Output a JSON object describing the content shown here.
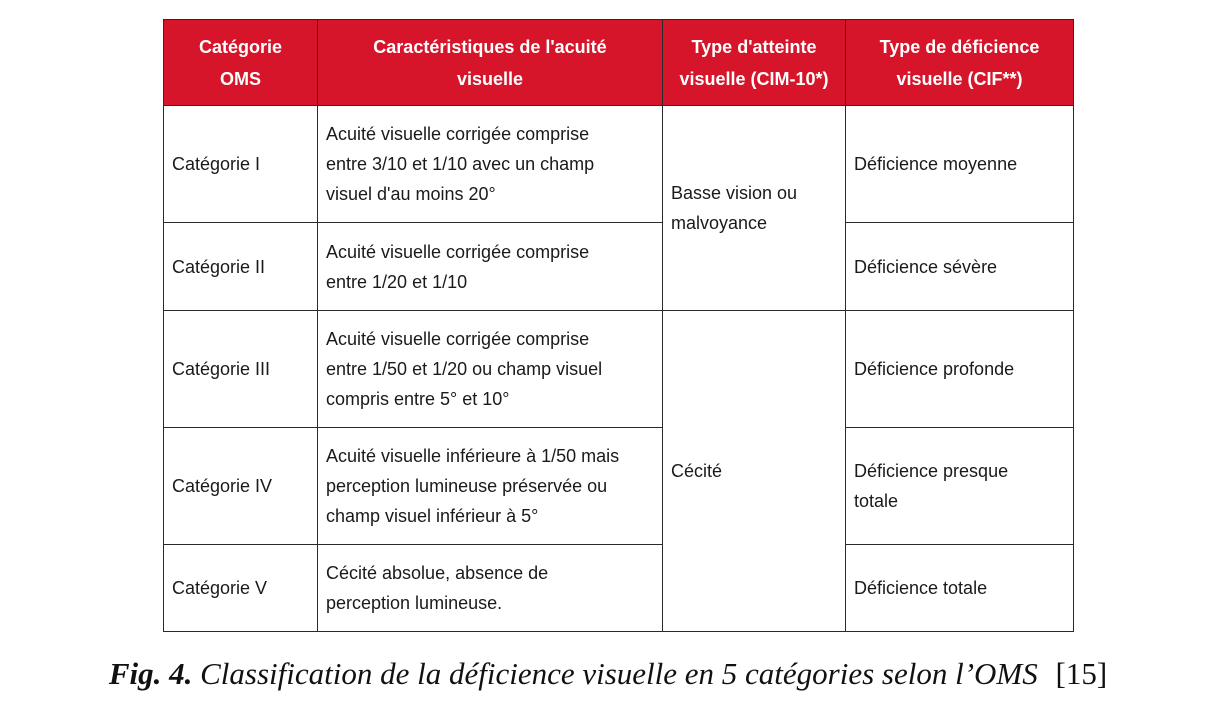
{
  "table": {
    "headers": [
      "Catégorie\nOMS",
      "Caractéristiques de l'acuité\nvisuelle",
      "Type d'atteinte\nvisuelle (CIM-10*)",
      "Type de déficience\nvisuelle (CIF**)"
    ],
    "rows": [
      {
        "category": "Catégorie I",
        "characteristics": "Acuité visuelle corrigée comprise\nentre 3/10 et 1/10 avec un champ\nvisuel d'au moins 20°",
        "deficiency": "Déficience moyenne"
      },
      {
        "category": "Catégorie II",
        "characteristics": "Acuité visuelle corrigée comprise\nentre 1/20 et 1/10",
        "deficiency": "Déficience sévère"
      },
      {
        "category": "Catégorie III",
        "characteristics": "Acuité visuelle corrigée comprise\nentre 1/50 et 1/20 ou champ visuel\ncompris entre 5° et 10°",
        "deficiency": "Déficience profonde"
      },
      {
        "category": "Catégorie IV",
        "characteristics": "Acuité visuelle inférieure à 1/50 mais\nperception lumineuse préservée ou\nchamp visuel inférieur à 5°",
        "deficiency": "Déficience presque\ntotale"
      },
      {
        "category": "Catégorie V",
        "characteristics": "Cécité absolue, absence de\nperception lumineuse.",
        "deficiency": "Déficience totale"
      }
    ],
    "impairment_groups": [
      {
        "label": "Basse vision ou\nmalvoyance",
        "rows": 2
      },
      {
        "label": "Cécité",
        "rows": 3
      }
    ],
    "colors": {
      "header_bg": "#d7152a",
      "header_text": "#ffffff",
      "border": "#2b2b2b"
    }
  },
  "caption": {
    "label": "Fig. 4.",
    "text": "Classification de la déficience visuelle en 5 catégories selon l’OMS",
    "ref": "[15]"
  }
}
